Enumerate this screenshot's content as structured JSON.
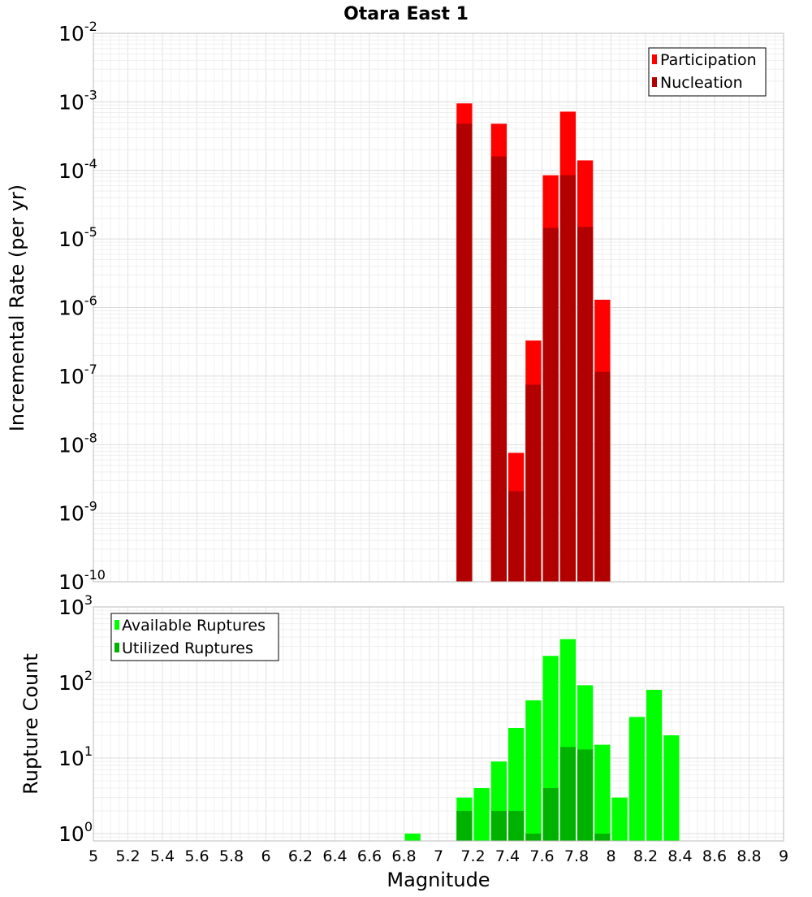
{
  "title": "Otara East 1",
  "xlabel": "Magnitude",
  "colors": {
    "participation": "#ff0000",
    "nucleation": "#b20000",
    "available": "#00ff00",
    "utilized": "#00b200"
  },
  "chart_data": [
    {
      "type": "bar",
      "y_scale": "log",
      "ylabel": "Incremental Rate (per yr)",
      "xlim": [
        5,
        9
      ],
      "ylim": [
        1e-10,
        0.01
      ],
      "bar_width": 0.1,
      "grid": true,
      "legend_position": "top-right",
      "y_exponents": [
        -10,
        -9,
        -8,
        -7,
        -6,
        -5,
        -4,
        -3,
        -2
      ],
      "series": [
        {
          "name": "Participation",
          "color": "#ff0000",
          "points": [
            {
              "x": 7.15,
              "y": 0.00095
            },
            {
              "x": 7.35,
              "y": 0.00048
            },
            {
              "x": 7.45,
              "y": 7.6e-09
            },
            {
              "x": 7.55,
              "y": 3.3e-07
            },
            {
              "x": 7.65,
              "y": 8.5e-05
            },
            {
              "x": 7.75,
              "y": 0.00072
            },
            {
              "x": 7.85,
              "y": 0.00014
            },
            {
              "x": 7.95,
              "y": 1.3e-06
            }
          ]
        },
        {
          "name": "Nucleation",
          "color": "#b20000",
          "points": [
            {
              "x": 7.15,
              "y": 0.00048
            },
            {
              "x": 7.35,
              "y": 0.00016
            },
            {
              "x": 7.45,
              "y": 2.1e-09
            },
            {
              "x": 7.55,
              "y": 7.5e-08
            },
            {
              "x": 7.65,
              "y": 1.45e-05
            },
            {
              "x": 7.75,
              "y": 8.5e-05
            },
            {
              "x": 7.85,
              "y": 1.5e-05
            },
            {
              "x": 7.95,
              "y": 1.15e-07
            }
          ]
        }
      ]
    },
    {
      "type": "bar",
      "y_scale": "log",
      "ylabel": "Rupture Count",
      "xlim": [
        5,
        9
      ],
      "ylim": [
        0.8,
        1000
      ],
      "bar_width": 0.1,
      "grid": true,
      "legend_position": "top-left",
      "y_exponents": [
        0,
        1,
        2,
        3
      ],
      "series": [
        {
          "name": "Available Ruptures",
          "color": "#00ff00",
          "points": [
            {
              "x": 6.85,
              "y": 1
            },
            {
              "x": 7.15,
              "y": 3
            },
            {
              "x": 7.25,
              "y": 4
            },
            {
              "x": 7.35,
              "y": 9
            },
            {
              "x": 7.45,
              "y": 25
            },
            {
              "x": 7.55,
              "y": 58
            },
            {
              "x": 7.65,
              "y": 225
            },
            {
              "x": 7.75,
              "y": 375
            },
            {
              "x": 7.85,
              "y": 92
            },
            {
              "x": 7.95,
              "y": 15
            },
            {
              "x": 8.05,
              "y": 3
            },
            {
              "x": 8.15,
              "y": 35
            },
            {
              "x": 8.25,
              "y": 80
            },
            {
              "x": 8.35,
              "y": 20
            }
          ]
        },
        {
          "name": "Utilized Ruptures",
          "color": "#00b200",
          "points": [
            {
              "x": 7.15,
              "y": 2
            },
            {
              "x": 7.35,
              "y": 2
            },
            {
              "x": 7.45,
              "y": 2
            },
            {
              "x": 7.55,
              "y": 1
            },
            {
              "x": 7.65,
              "y": 4
            },
            {
              "x": 7.75,
              "y": 14
            },
            {
              "x": 7.85,
              "y": 13
            },
            {
              "x": 7.95,
              "y": 1
            }
          ]
        }
      ]
    }
  ],
  "x_ticks": [
    5,
    5.2,
    5.4,
    5.6,
    5.8,
    6,
    6.2,
    6.4,
    6.6,
    6.8,
    7,
    7.2,
    7.4,
    7.6,
    7.8,
    8,
    8.2,
    8.4,
    8.6,
    8.8,
    9
  ]
}
